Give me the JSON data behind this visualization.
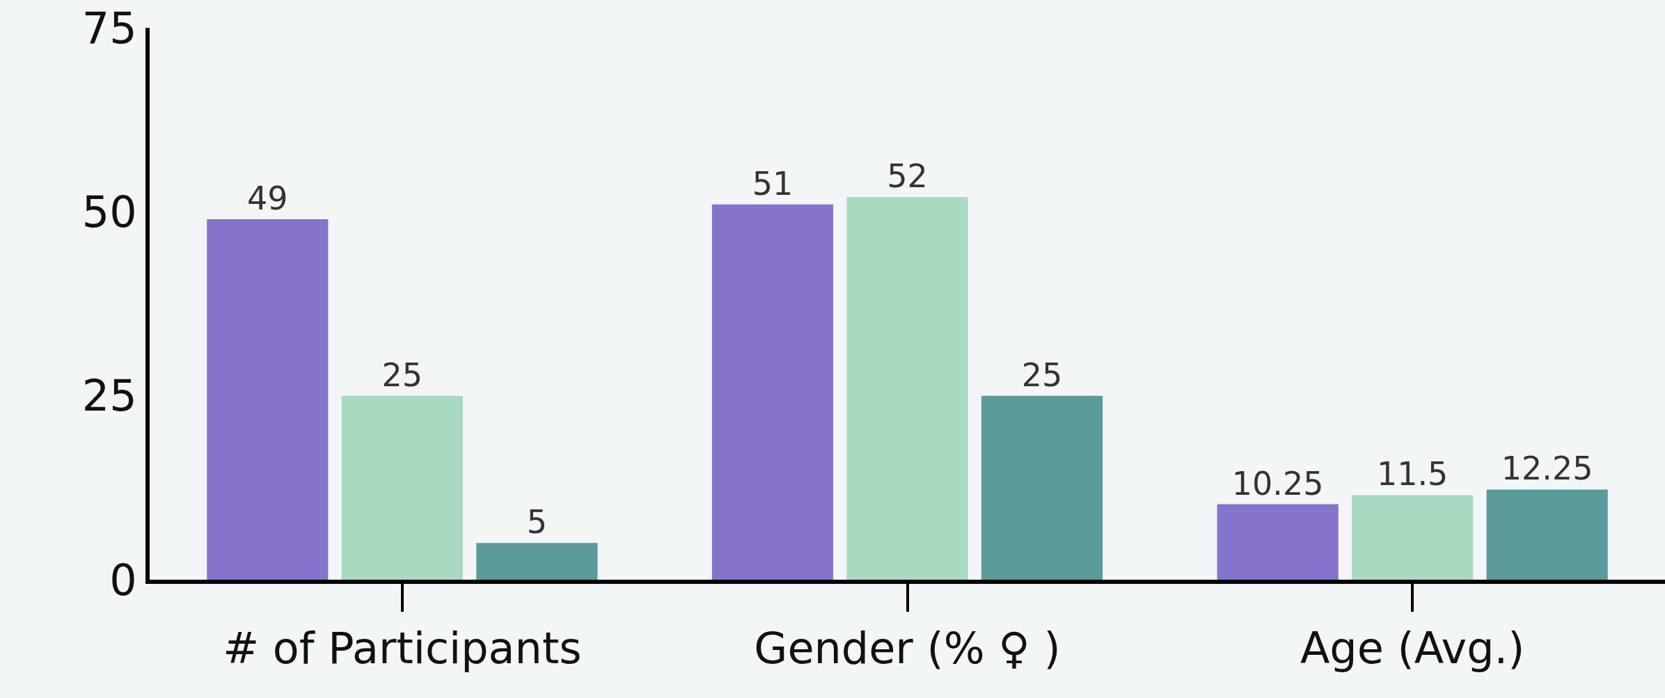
{
  "chart_data": {
    "type": "bar",
    "categories": [
      "# of Participants",
      "Gender (% ♀ )",
      "Age (Avg.)"
    ],
    "series": [
      {
        "color": "#8573cc",
        "values": [
          49,
          51,
          10.25
        ]
      },
      {
        "color": "#a8d9c1",
        "values": [
          25,
          52,
          11.5
        ]
      },
      {
        "color": "#5a9b9b",
        "values": [
          5,
          25,
          12.25
        ]
      }
    ],
    "ylim": [
      0,
      75
    ],
    "yticks": [
      0,
      25,
      50,
      75
    ],
    "data_labels": true
  }
}
